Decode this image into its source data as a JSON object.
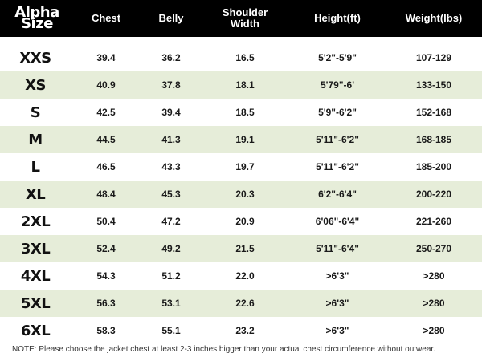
{
  "headers": [
    "Alpha Size",
    "Chest",
    "Belly",
    "Shoulder Width",
    "Height(ft)",
    "Weight(lbs)"
  ],
  "rows": [
    [
      "XXS",
      "39.4",
      "36.2",
      "16.5",
      "5'2\"-5'9\"",
      "107-129"
    ],
    [
      "XS",
      "40.9",
      "37.8",
      "18.1",
      "5'79\"-6'",
      "133-150"
    ],
    [
      "S",
      "42.5",
      "39.4",
      "18.5",
      "5'9\"-6'2\"",
      "152-168"
    ],
    [
      "M",
      "44.5",
      "41.3",
      "19.1",
      "5'11\"-6'2\"",
      "168-185"
    ],
    [
      "L",
      "46.5",
      "43.3",
      "19.7",
      "5'11\"-6'2\"",
      "185-200"
    ],
    [
      "XL",
      "48.4",
      "45.3",
      "20.3",
      "6'2\"-6'4\"",
      "200-220"
    ],
    [
      "2XL",
      "50.4",
      "47.2",
      "20.9",
      "6'06\"-6'4\"",
      "221-260"
    ],
    [
      "3XL",
      "52.4",
      "49.2",
      "21.5",
      "5'11\"-6'4\"",
      "250-270"
    ],
    [
      "4XL",
      "54.3",
      "51.2",
      "22.0",
      ">6'3\"",
      ">280"
    ],
    [
      "5XL",
      "56.3",
      "53.1",
      "22.6",
      ">6'3\"",
      ">280"
    ],
    [
      "6XL",
      "58.3",
      "55.1",
      "23.2",
      ">6'3\"",
      ">280"
    ]
  ],
  "note": "NOTE: Please choose the jacket chest at least 2-3 inches bigger than your actual chest circumference without outwear.",
  "colors": {
    "header_bg": "#000000",
    "header_text": "#ffffff",
    "stripe": "#e6edd9"
  }
}
